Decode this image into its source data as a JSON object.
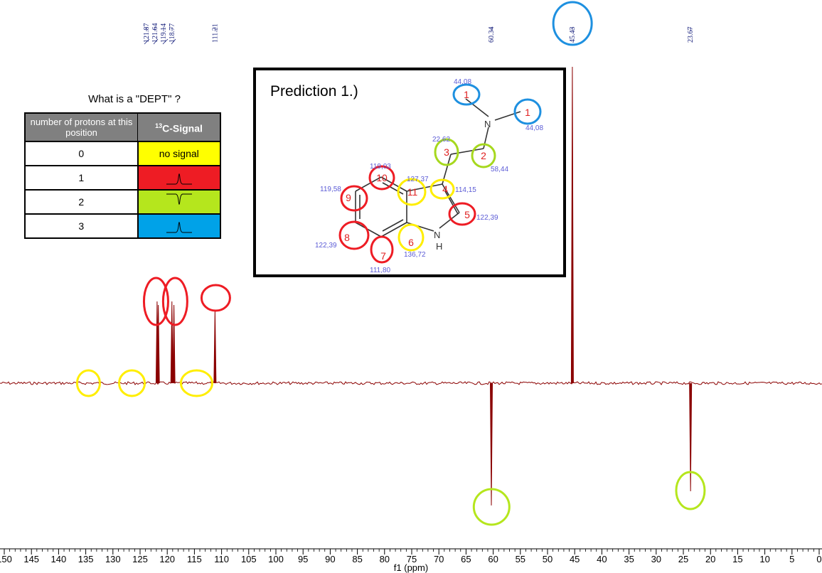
{
  "chart_data": {
    "type": "line",
    "title": "",
    "xlabel": "f1 (ppm)",
    "xlim": [
      150,
      0
    ],
    "x_ticks": [
      "150",
      "145",
      "140",
      "135",
      "130",
      "125",
      "120",
      "115",
      "110",
      "105",
      "100",
      "95",
      "90",
      "85",
      "80",
      "75",
      "70",
      "65",
      "60",
      "55",
      "50",
      "45",
      "40",
      "35",
      "30",
      "25",
      "20",
      "15",
      "10",
      "5",
      "0"
    ],
    "peaks": [
      {
        "ppm": 121.87,
        "label": "121.87",
        "direction": "up"
      },
      {
        "ppm": 121.64,
        "label": "121.64",
        "direction": "up"
      },
      {
        "ppm": 119.14,
        "label": "119.14",
        "direction": "up"
      },
      {
        "ppm": 118.77,
        "label": "118.77",
        "direction": "up"
      },
      {
        "ppm": 111.21,
        "label": "111.21",
        "direction": "up"
      },
      {
        "ppm": 60.34,
        "label": "60.34",
        "direction": "down"
      },
      {
        "ppm": 45.43,
        "label": "45.43",
        "direction": "up"
      },
      {
        "ppm": 23.67,
        "label": "23.67",
        "direction": "down"
      }
    ],
    "highlight_circles": [
      {
        "ppm": 134.5,
        "color": "#ffee00",
        "where": "baseline"
      },
      {
        "ppm": 126.5,
        "color": "#ffee00",
        "where": "baseline"
      },
      {
        "ppm": 114.6,
        "color": "#ffee00",
        "where": "baseline"
      },
      {
        "ppm": 121.8,
        "color": "#ee1c24",
        "where": "peak"
      },
      {
        "ppm": 118.8,
        "color": "#ee1c24",
        "where": "peak"
      },
      {
        "ppm": 111.2,
        "color": "#ee1c24",
        "where": "peak"
      },
      {
        "ppm": 60.3,
        "color": "#b5e61d",
        "where": "negative"
      },
      {
        "ppm": 23.7,
        "color": "#b5e61d",
        "where": "negative"
      },
      {
        "ppm": 45.4,
        "color": "#1e90e0",
        "where": "label"
      }
    ],
    "colors": {
      "spectrum": "#8b0000",
      "axis": "#000000"
    }
  },
  "dept": {
    "title": "What is a \"DEPT\" ?",
    "header_protons": "number of protons at this position",
    "header_signal_sup": "13",
    "header_signal": "C-Signal",
    "rows": [
      {
        "protons": "0",
        "signal": "no signal",
        "color": "#ffff00",
        "shape": "none"
      },
      {
        "protons": "1",
        "signal": "",
        "color": "#ee1c24",
        "shape": "up"
      },
      {
        "protons": "2",
        "signal": "",
        "color": "#b5e61d",
        "shape": "down"
      },
      {
        "protons": "3",
        "signal": "",
        "color": "#00a2e8",
        "shape": "up"
      }
    ]
  },
  "prediction": {
    "title": "Prediction 1.)",
    "atoms": [
      {
        "num": "1",
        "shift": "44,08",
        "ring": "#1e90e0"
      },
      {
        "num": "1",
        "shift": "44,08",
        "ring": "#1e90e0"
      },
      {
        "num": "2",
        "shift": "58,44",
        "ring": "#a6d81e"
      },
      {
        "num": "3",
        "shift": "22,62",
        "ring": "#a6d81e"
      },
      {
        "num": "4",
        "shift": "114,15",
        "ring": "#ffee00"
      },
      {
        "num": "5",
        "shift": "122,39",
        "ring": "#ee1c24"
      },
      {
        "num": "6",
        "shift": "136,72",
        "ring": "#ffee00"
      },
      {
        "num": "7",
        "shift": "111,80",
        "ring": "#ee1c24"
      },
      {
        "num": "8",
        "shift": "122,39",
        "ring": "#ee1c24"
      },
      {
        "num": "9",
        "shift": "119,58",
        "ring": "#ee1c24"
      },
      {
        "num": "10",
        "shift": "119,03",
        "ring": "#ee1c24"
      },
      {
        "num": "11",
        "shift": "127,37",
        "ring": "#ffee00"
      }
    ],
    "n_label": "N",
    "nh_label": "H",
    "nh_n": "N"
  }
}
